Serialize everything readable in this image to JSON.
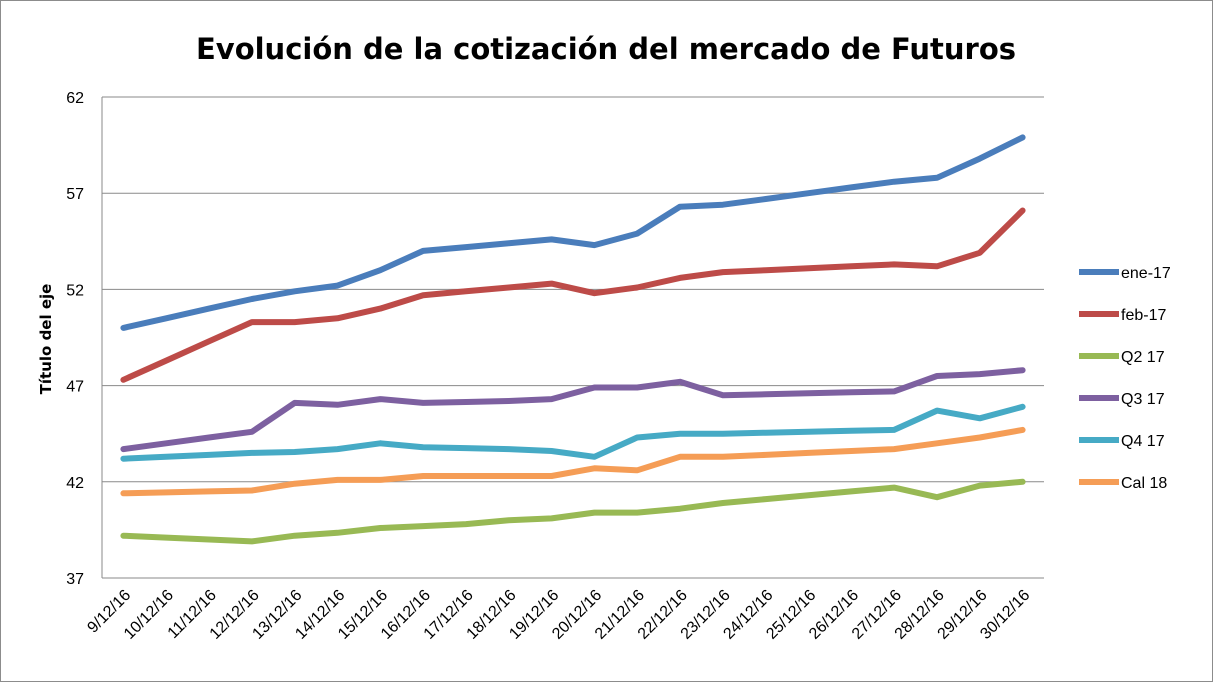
{
  "chart_data": {
    "type": "line",
    "title": "Evolución de la cotización del mercado de Futuros",
    "xlabel": "",
    "ylabel": "Título del eje",
    "ylim": [
      37,
      62
    ],
    "yticks": [
      37,
      42,
      47,
      52,
      57,
      62
    ],
    "grid": true,
    "legend_position": "right",
    "x": [
      "9/12/16",
      "10/12/16",
      "11/12/16",
      "12/12/16",
      "13/12/16",
      "14/12/16",
      "15/12/16",
      "16/12/16",
      "17/12/16",
      "18/12/16",
      "19/12/16",
      "20/12/16",
      "21/12/16",
      "22/12/16",
      "23/12/16",
      "24/12/16",
      "25/12/16",
      "26/12/16",
      "27/12/16",
      "28/12/16",
      "29/12/16",
      "30/12/16"
    ],
    "series": [
      {
        "name": "ene-17",
        "color": "#4a7dbb",
        "values": [
          50.0,
          50.5,
          51.0,
          51.5,
          51.9,
          52.2,
          53.0,
          54.0,
          54.2,
          54.4,
          54.6,
          54.3,
          54.9,
          56.3,
          56.4,
          56.7,
          57.0,
          57.3,
          57.6,
          57.8,
          58.8,
          59.9
        ]
      },
      {
        "name": "feb-17",
        "color": "#bd4b48",
        "values": [
          47.3,
          48.3,
          49.3,
          50.3,
          50.3,
          50.5,
          51.0,
          51.7,
          51.9,
          52.1,
          52.3,
          51.8,
          52.1,
          52.6,
          52.9,
          53.0,
          53.1,
          53.2,
          53.3,
          53.2,
          53.9,
          56.1
        ]
      },
      {
        "name": "Q2 17",
        "color": "#98b954",
        "values": [
          39.2,
          39.1,
          39.0,
          38.9,
          39.2,
          39.35,
          39.6,
          39.7,
          39.8,
          40.0,
          40.1,
          40.4,
          40.4,
          40.6,
          40.9,
          41.1,
          41.3,
          41.5,
          41.7,
          41.2,
          41.8,
          42.0
        ]
      },
      {
        "name": "Q3 17",
        "color": "#7d60a0",
        "values": [
          43.7,
          44.0,
          44.3,
          44.6,
          46.1,
          46.0,
          46.3,
          46.1,
          46.15,
          46.2,
          46.3,
          46.9,
          46.9,
          47.2,
          46.5,
          46.55,
          46.6,
          46.65,
          46.7,
          47.5,
          47.6,
          47.8
        ]
      },
      {
        "name": "Q4 17",
        "color": "#46aac5",
        "values": [
          43.2,
          43.3,
          43.4,
          43.5,
          43.55,
          43.7,
          44.0,
          43.8,
          43.75,
          43.7,
          43.6,
          43.3,
          44.3,
          44.5,
          44.5,
          44.55,
          44.6,
          44.65,
          44.7,
          45.7,
          45.3,
          45.9
        ]
      },
      {
        "name": "Cal 18",
        "color": "#f59d56",
        "values": [
          41.4,
          41.45,
          41.5,
          41.55,
          41.9,
          42.1,
          42.1,
          42.3,
          42.3,
          42.3,
          42.3,
          42.7,
          42.6,
          43.3,
          43.3,
          43.4,
          43.5,
          43.6,
          43.7,
          44.0,
          44.3,
          44.7
        ]
      }
    ]
  }
}
